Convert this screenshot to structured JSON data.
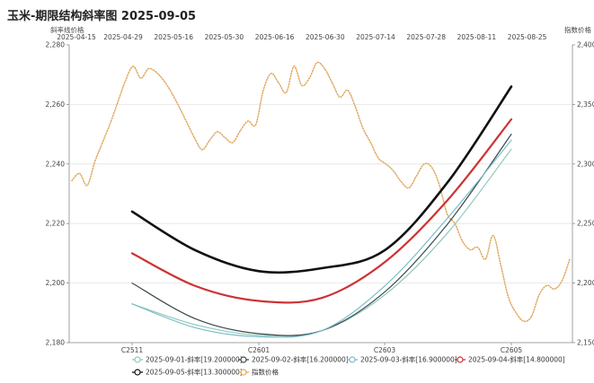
{
  "chart_data": {
    "type": "line",
    "title": "玉米-期限结构斜率图 2025-09-05",
    "y_left_label": "斜率线价格",
    "y_right_label": "指数价格",
    "y_left_ticks": [
      "2,280",
      "2,260",
      "2,240",
      "2,220",
      "2,200",
      "2,180"
    ],
    "y_left_lim": [
      2180,
      2280
    ],
    "y_right_ticks": [
      "2,400",
      "2,350",
      "2,300",
      "2,250",
      "2,200",
      "2,150"
    ],
    "y_right_lim": [
      2150,
      2400
    ],
    "x_bottom_ticks": [
      "C2511",
      "C2601",
      "C2603",
      "C2605"
    ],
    "x_top_ticks": [
      "2025-04-15",
      "2025-04-29",
      "2025-05-16",
      "2025-05-30",
      "2025-06-16",
      "2025-06-30",
      "2025-07-14",
      "2025-07-28",
      "2025-08-11",
      "2025-08-25"
    ],
    "grid": "horizontal",
    "legend_position": "bottom",
    "series": [
      {
        "name": "2025-09-01-斜率[19.200000]",
        "color": "#8fc9b8",
        "width": 1.2,
        "x": [
          0,
          0.5,
          1,
          1.5,
          2,
          2.5,
          3
        ],
        "values": [
          2193.0,
          2186.0,
          2182.5,
          2184.0,
          2196.0,
          2217.0,
          2245.0
        ]
      },
      {
        "name": "2025-09-02-斜率[16.200000]",
        "color": "#3a4a4f",
        "width": 1.2,
        "x": [
          0,
          0.5,
          1,
          1.5,
          2,
          2.5,
          3
        ],
        "values": [
          2200.0,
          2188.0,
          2183.0,
          2184.0,
          2197.0,
          2220.0,
          2250.0
        ]
      },
      {
        "name": "2025-09-03-斜率[16.900000]",
        "color": "#7bbdc7",
        "width": 1.2,
        "x": [
          0,
          0.5,
          1,
          1.5,
          2,
          2.5,
          3
        ],
        "values": [
          2193.0,
          2185.0,
          2182.0,
          2184.0,
          2199.0,
          2222.0,
          2248.0
        ]
      },
      {
        "name": "2025-09-04-斜率[14.800000]",
        "color": "#cc3333",
        "width": 2.2,
        "x": [
          0,
          0.5,
          1,
          1.5,
          2,
          2.5,
          3
        ],
        "values": [
          2210.0,
          2199.0,
          2194.0,
          2195.0,
          2207.0,
          2228.0,
          2255.0
        ]
      },
      {
        "name": "2025-09-05-斜率[13.300000]",
        "color": "#111111",
        "width": 2.6,
        "x": [
          0,
          0.5,
          1,
          1.5,
          2,
          2.5,
          3
        ],
        "values": [
          2224.0,
          2211.0,
          2204.0,
          2205.0,
          2211.0,
          2234.0,
          2266.0
        ]
      }
    ],
    "index_series": {
      "name": "指数价格",
      "color": "#e0a860",
      "x_start": "2025-04-15",
      "x_end": "2025-09-05",
      "values": [
        2286,
        2292,
        2282,
        2302,
        2318,
        2334,
        2352,
        2370,
        2382,
        2372,
        2380,
        2377,
        2370,
        2360,
        2348,
        2335,
        2322,
        2312,
        2320,
        2327,
        2322,
        2318,
        2328,
        2336,
        2333,
        2362,
        2376,
        2368,
        2360,
        2382,
        2366,
        2372,
        2385,
        2380,
        2368,
        2356,
        2362,
        2348,
        2330,
        2318,
        2305,
        2300,
        2294,
        2285,
        2280,
        2290,
        2300,
        2297,
        2282,
        2258,
        2250,
        2235,
        2228,
        2230,
        2220,
        2240,
        2215,
        2188,
        2175,
        2168,
        2172,
        2190,
        2198,
        2195,
        2202,
        2220
      ]
    }
  }
}
